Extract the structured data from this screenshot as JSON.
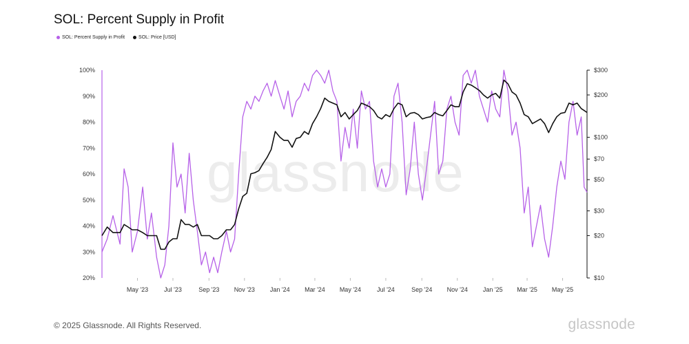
{
  "title": "SOL: Percent Supply in Profit",
  "legend": [
    {
      "label": "SOL: Percent Supply in Profit",
      "color": "#b660e8"
    },
    {
      "label": "SOL: Price [USD]",
      "color": "#111111"
    }
  ],
  "watermark": "glassnode",
  "footer": "© 2025 Glassnode. All Rights Reserved.",
  "brand": "glassnode",
  "chart_data": {
    "type": "line",
    "title": "SOL: Percent Supply in Profit",
    "x_ticks": [
      "May '23",
      "Jul '23",
      "Sep '23",
      "Nov '23",
      "Jan '24",
      "Mar '24",
      "May '24",
      "Jul '24",
      "Sep '24",
      "Nov '24",
      "Jan '25",
      "Mar '25",
      "May '25"
    ],
    "left_axis": {
      "ticks": [
        "20%",
        "30%",
        "40%",
        "50%",
        "60%",
        "70%",
        "80%",
        "90%",
        "100%"
      ],
      "range": [
        20,
        100
      ]
    },
    "right_axis": {
      "scale": "log",
      "ticks": [
        "$10",
        "$20",
        "$30",
        "$50",
        "$70",
        "$100",
        "$200",
        "$300"
      ],
      "range": [
        10,
        300
      ]
    },
    "x_range": [
      "2023-03-01",
      "2025-06-12"
    ],
    "series": [
      {
        "name": "SOL: Percent Supply in Profit",
        "axis": "left",
        "color": "#b660e8",
        "points": [
          [
            "2023-03-01",
            30
          ],
          [
            "2023-03-10",
            35
          ],
          [
            "2023-03-20",
            44
          ],
          [
            "2023-04-01",
            33
          ],
          [
            "2023-04-08",
            62
          ],
          [
            "2023-04-15",
            55
          ],
          [
            "2023-04-22",
            30
          ],
          [
            "2023-05-01",
            38
          ],
          [
            "2023-05-10",
            55
          ],
          [
            "2023-05-18",
            35
          ],
          [
            "2023-05-25",
            45
          ],
          [
            "2023-06-03",
            28
          ],
          [
            "2023-06-10",
            20
          ],
          [
            "2023-06-17",
            25
          ],
          [
            "2023-06-24",
            40
          ],
          [
            "2023-07-01",
            72
          ],
          [
            "2023-07-08",
            55
          ],
          [
            "2023-07-15",
            60
          ],
          [
            "2023-07-22",
            45
          ],
          [
            "2023-07-29",
            68
          ],
          [
            "2023-08-05",
            50
          ],
          [
            "2023-08-12",
            38
          ],
          [
            "2023-08-19",
            25
          ],
          [
            "2023-08-26",
            30
          ],
          [
            "2023-09-02",
            22
          ],
          [
            "2023-09-09",
            28
          ],
          [
            "2023-09-16",
            22
          ],
          [
            "2023-09-23",
            30
          ],
          [
            "2023-10-01",
            38
          ],
          [
            "2023-10-08",
            30
          ],
          [
            "2023-10-15",
            35
          ],
          [
            "2023-10-22",
            60
          ],
          [
            "2023-10-29",
            82
          ],
          [
            "2023-11-05",
            88
          ],
          [
            "2023-11-12",
            85
          ],
          [
            "2023-11-19",
            90
          ],
          [
            "2023-11-26",
            88
          ],
          [
            "2023-12-03",
            92
          ],
          [
            "2023-12-10",
            95
          ],
          [
            "2023-12-17",
            90
          ],
          [
            "2023-12-24",
            96
          ],
          [
            "2024-01-01",
            90
          ],
          [
            "2024-01-08",
            85
          ],
          [
            "2024-01-15",
            92
          ],
          [
            "2024-01-22",
            82
          ],
          [
            "2024-01-29",
            88
          ],
          [
            "2024-02-05",
            90
          ],
          [
            "2024-02-12",
            95
          ],
          [
            "2024-02-19",
            92
          ],
          [
            "2024-02-26",
            98
          ],
          [
            "2024-03-04",
            100
          ],
          [
            "2024-03-11",
            98
          ],
          [
            "2024-03-18",
            95
          ],
          [
            "2024-03-25",
            100
          ],
          [
            "2024-04-01",
            92
          ],
          [
            "2024-04-08",
            88
          ],
          [
            "2024-04-15",
            65
          ],
          [
            "2024-04-22",
            78
          ],
          [
            "2024-04-29",
            70
          ],
          [
            "2024-05-06",
            85
          ],
          [
            "2024-05-13",
            70
          ],
          [
            "2024-05-20",
            92
          ],
          [
            "2024-05-27",
            85
          ],
          [
            "2024-06-03",
            88
          ],
          [
            "2024-06-10",
            65
          ],
          [
            "2024-06-17",
            55
          ],
          [
            "2024-06-24",
            62
          ],
          [
            "2024-07-01",
            55
          ],
          [
            "2024-07-08",
            60
          ],
          [
            "2024-07-15",
            90
          ],
          [
            "2024-07-22",
            95
          ],
          [
            "2024-07-29",
            80
          ],
          [
            "2024-08-05",
            52
          ],
          [
            "2024-08-12",
            62
          ],
          [
            "2024-08-19",
            80
          ],
          [
            "2024-08-26",
            60
          ],
          [
            "2024-09-02",
            50
          ],
          [
            "2024-09-09",
            62
          ],
          [
            "2024-09-16",
            75
          ],
          [
            "2024-09-23",
            88
          ],
          [
            "2024-09-30",
            60
          ],
          [
            "2024-10-07",
            65
          ],
          [
            "2024-10-14",
            85
          ],
          [
            "2024-10-21",
            90
          ],
          [
            "2024-10-28",
            80
          ],
          [
            "2024-11-04",
            75
          ],
          [
            "2024-11-11",
            98
          ],
          [
            "2024-11-18",
            100
          ],
          [
            "2024-11-25",
            95
          ],
          [
            "2024-12-02",
            100
          ],
          [
            "2024-12-09",
            90
          ],
          [
            "2024-12-16",
            85
          ],
          [
            "2024-12-23",
            80
          ],
          [
            "2024-12-30",
            92
          ],
          [
            "2025-01-06",
            85
          ],
          [
            "2025-01-13",
            82
          ],
          [
            "2025-01-20",
            100
          ],
          [
            "2025-01-27",
            92
          ],
          [
            "2025-02-03",
            75
          ],
          [
            "2025-02-10",
            80
          ],
          [
            "2025-02-17",
            70
          ],
          [
            "2025-02-24",
            45
          ],
          [
            "2025-03-03",
            55
          ],
          [
            "2025-03-10",
            32
          ],
          [
            "2025-03-17",
            40
          ],
          [
            "2025-03-24",
            48
          ],
          [
            "2025-03-31",
            35
          ],
          [
            "2025-04-07",
            28
          ],
          [
            "2025-04-14",
            40
          ],
          [
            "2025-04-21",
            55
          ],
          [
            "2025-04-28",
            65
          ],
          [
            "2025-05-05",
            58
          ],
          [
            "2025-05-12",
            80
          ],
          [
            "2025-05-19",
            88
          ],
          [
            "2025-05-26",
            75
          ],
          [
            "2025-06-02",
            82
          ],
          [
            "2025-06-07",
            55
          ],
          [
            "2025-06-12",
            53
          ]
        ]
      },
      {
        "name": "SOL: Price [USD]",
        "axis": "right",
        "color": "#111111",
        "points": [
          [
            "2023-03-01",
            20
          ],
          [
            "2023-03-10",
            23
          ],
          [
            "2023-03-20",
            21
          ],
          [
            "2023-04-01",
            21
          ],
          [
            "2023-04-08",
            24
          ],
          [
            "2023-04-15",
            23
          ],
          [
            "2023-04-22",
            22
          ],
          [
            "2023-05-01",
            22
          ],
          [
            "2023-05-10",
            21
          ],
          [
            "2023-05-18",
            20
          ],
          [
            "2023-05-25",
            20
          ],
          [
            "2023-06-03",
            20
          ],
          [
            "2023-06-10",
            16
          ],
          [
            "2023-06-17",
            16
          ],
          [
            "2023-06-24",
            18
          ],
          [
            "2023-07-01",
            19
          ],
          [
            "2023-07-08",
            19
          ],
          [
            "2023-07-15",
            26
          ],
          [
            "2023-07-22",
            24
          ],
          [
            "2023-07-29",
            24
          ],
          [
            "2023-08-05",
            23
          ],
          [
            "2023-08-12",
            24
          ],
          [
            "2023-08-19",
            20
          ],
          [
            "2023-08-26",
            20
          ],
          [
            "2023-09-02",
            20
          ],
          [
            "2023-09-09",
            19
          ],
          [
            "2023-09-16",
            19
          ],
          [
            "2023-09-23",
            20
          ],
          [
            "2023-10-01",
            22
          ],
          [
            "2023-10-08",
            22
          ],
          [
            "2023-10-15",
            24
          ],
          [
            "2023-10-22",
            31
          ],
          [
            "2023-10-29",
            38
          ],
          [
            "2023-11-05",
            40
          ],
          [
            "2023-11-12",
            55
          ],
          [
            "2023-11-19",
            56
          ],
          [
            "2023-11-26",
            58
          ],
          [
            "2023-12-03",
            65
          ],
          [
            "2023-12-10",
            72
          ],
          [
            "2023-12-17",
            82
          ],
          [
            "2023-12-24",
            110
          ],
          [
            "2024-01-01",
            100
          ],
          [
            "2024-01-08",
            95
          ],
          [
            "2024-01-15",
            95
          ],
          [
            "2024-01-22",
            85
          ],
          [
            "2024-01-29",
            98
          ],
          [
            "2024-02-05",
            100
          ],
          [
            "2024-02-12",
            110
          ],
          [
            "2024-02-19",
            105
          ],
          [
            "2024-02-26",
            125
          ],
          [
            "2024-03-04",
            140
          ],
          [
            "2024-03-11",
            160
          ],
          [
            "2024-03-18",
            190
          ],
          [
            "2024-03-25",
            180
          ],
          [
            "2024-04-01",
            175
          ],
          [
            "2024-04-08",
            170
          ],
          [
            "2024-04-15",
            140
          ],
          [
            "2024-04-22",
            150
          ],
          [
            "2024-04-29",
            135
          ],
          [
            "2024-05-06",
            145
          ],
          [
            "2024-05-13",
            155
          ],
          [
            "2024-05-20",
            175
          ],
          [
            "2024-05-27",
            170
          ],
          [
            "2024-06-03",
            165
          ],
          [
            "2024-06-10",
            155
          ],
          [
            "2024-06-17",
            140
          ],
          [
            "2024-06-24",
            135
          ],
          [
            "2024-07-01",
            145
          ],
          [
            "2024-07-08",
            140
          ],
          [
            "2024-07-15",
            160
          ],
          [
            "2024-07-22",
            175
          ],
          [
            "2024-07-29",
            170
          ],
          [
            "2024-08-05",
            140
          ],
          [
            "2024-08-12",
            148
          ],
          [
            "2024-08-19",
            150
          ],
          [
            "2024-08-26",
            145
          ],
          [
            "2024-09-02",
            135
          ],
          [
            "2024-09-09",
            138
          ],
          [
            "2024-09-16",
            140
          ],
          [
            "2024-09-23",
            150
          ],
          [
            "2024-09-30",
            145
          ],
          [
            "2024-10-07",
            142
          ],
          [
            "2024-10-14",
            155
          ],
          [
            "2024-10-21",
            170
          ],
          [
            "2024-10-28",
            165
          ],
          [
            "2024-11-04",
            165
          ],
          [
            "2024-11-11",
            210
          ],
          [
            "2024-11-18",
            240
          ],
          [
            "2024-11-25",
            235
          ],
          [
            "2024-12-02",
            225
          ],
          [
            "2024-12-09",
            215
          ],
          [
            "2024-12-16",
            200
          ],
          [
            "2024-12-23",
            190
          ],
          [
            "2024-12-30",
            200
          ],
          [
            "2025-01-06",
            205
          ],
          [
            "2025-01-13",
            190
          ],
          [
            "2025-01-20",
            255
          ],
          [
            "2025-01-27",
            240
          ],
          [
            "2025-02-03",
            210
          ],
          [
            "2025-02-10",
            200
          ],
          [
            "2025-02-17",
            175
          ],
          [
            "2025-02-24",
            145
          ],
          [
            "2025-03-03",
            140
          ],
          [
            "2025-03-10",
            125
          ],
          [
            "2025-03-17",
            130
          ],
          [
            "2025-03-24",
            135
          ],
          [
            "2025-03-31",
            125
          ],
          [
            "2025-04-07",
            108
          ],
          [
            "2025-04-14",
            125
          ],
          [
            "2025-04-21",
            140
          ],
          [
            "2025-04-28",
            148
          ],
          [
            "2025-05-05",
            150
          ],
          [
            "2025-05-12",
            175
          ],
          [
            "2025-05-19",
            170
          ],
          [
            "2025-05-26",
            175
          ],
          [
            "2025-06-02",
            160
          ],
          [
            "2025-06-07",
            155
          ],
          [
            "2025-06-12",
            150
          ]
        ]
      }
    ]
  }
}
